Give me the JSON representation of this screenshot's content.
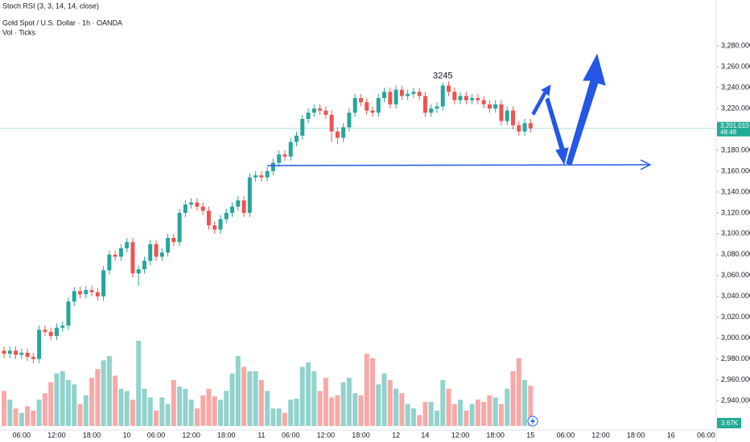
{
  "chart_data": {
    "type": "candlestick",
    "indicator": "Stoch RSI (3, 3, 14, 14, close)",
    "title": "Gold Spot / U.S. Dollar · 1h · OANDA",
    "volume_title": "Vol · Ticks",
    "peak_label": "3245",
    "last_price_label": "3,201.010",
    "countdown": "48:48",
    "volume_label": "3.67K",
    "up_color": "#26a69a",
    "down_color": "#ef5350",
    "ylim": [
      2912,
      3324
    ],
    "volume_ylim": [
      0,
      10000
    ],
    "yticks": [
      {
        "value": 2940,
        "label": "2,940.000"
      },
      {
        "value": 2960,
        "label": "2,960.000"
      },
      {
        "value": 2980,
        "label": "2,980.000"
      },
      {
        "value": 3000,
        "label": "3,000.000"
      },
      {
        "value": 3020,
        "label": "3,020.000"
      },
      {
        "value": 3040,
        "label": "3,040.000"
      },
      {
        "value": 3060,
        "label": "3,060.000"
      },
      {
        "value": 3080,
        "label": "3,080.000"
      },
      {
        "value": 3100,
        "label": "3,100.000"
      },
      {
        "value": 3120,
        "label": "3,120.000"
      },
      {
        "value": 3140,
        "label": "3,140.000"
      },
      {
        "value": 3160,
        "label": "3,160.000"
      },
      {
        "value": 3180,
        "label": "3,180.000"
      },
      {
        "value": 3220,
        "label": "3,220.000"
      },
      {
        "value": 3240,
        "label": "3,240.000"
      },
      {
        "value": 3260,
        "label": "3,260.000"
      },
      {
        "value": 3280,
        "label": "3,280.000"
      }
    ],
    "categories": [
      null,
      null,
      null,
      "06:00",
      null,
      null,
      null,
      null,
      null,
      "12:00",
      null,
      null,
      null,
      null,
      null,
      "18:00",
      null,
      null,
      null,
      null,
      null,
      "10",
      null,
      null,
      null,
      null,
      "06:00",
      null,
      null,
      null,
      null,
      null,
      "12:00",
      null,
      null,
      null,
      null,
      null,
      "18:00",
      null,
      null,
      null,
      null,
      null,
      "11",
      null,
      null,
      null,
      null,
      "06:00",
      null,
      null,
      null,
      null,
      null,
      "12:00",
      null,
      null,
      null,
      null,
      null,
      "18:00",
      null,
      null,
      null,
      null,
      null,
      "12",
      null,
      null,
      null,
      null,
      "14",
      null,
      null,
      null,
      null,
      null,
      "12:00",
      null,
      null,
      null,
      null,
      null,
      "18:00",
      null,
      null,
      null,
      null,
      null,
      "15",
      null,
      null,
      null,
      null,
      null,
      "06:00",
      null,
      null,
      null,
      null,
      null,
      "12:00",
      null,
      null,
      null,
      null,
      null,
      "18:00",
      null,
      null,
      null,
      null,
      null,
      "16",
      null,
      null,
      null,
      null,
      null,
      "06:00"
    ],
    "open": [
      2988,
      2985,
      2988,
      2984,
      2986,
      2982,
      2980,
      3008,
      3006,
      3002,
      3010,
      3012,
      3035,
      3045,
      3042,
      3046,
      3044,
      3040,
      3065,
      3080,
      3078,
      3086,
      3092,
      3062,
      3066,
      3074,
      3090,
      3078,
      3082,
      3096,
      3092,
      3120,
      3128,
      3130,
      3126,
      3122,
      3108,
      3104,
      3114,
      3120,
      3126,
      3132,
      3120,
      3154,
      3156,
      3154,
      3160,
      3168,
      3176,
      3174,
      3188,
      3194,
      3210,
      3216,
      3220,
      3218,
      3214,
      3198,
      3192,
      3202,
      3216,
      3230,
      3226,
      3218,
      3216,
      3230,
      3236,
      3224,
      3238,
      3232,
      3234,
      3236,
      3232,
      3216,
      3220,
      3222,
      3242,
      3236,
      3228,
      3232,
      3228,
      3230,
      3228,
      3224,
      3220,
      3224,
      3208,
      3218,
      3204,
      3198,
      3206,
      null,
      null,
      null,
      null,
      null,
      null,
      null,
      null,
      null,
      null,
      null,
      null,
      null,
      null,
      null,
      null,
      null,
      null,
      null,
      null,
      null,
      null,
      null,
      null,
      null,
      null,
      null,
      null,
      null,
      null
    ],
    "high": [
      2992,
      2992,
      2992,
      2990,
      2990,
      2986,
      3012,
      3012,
      3010,
      3014,
      3016,
      3039,
      3049,
      3049,
      3050,
      3050,
      3048,
      3069,
      3084,
      3084,
      3090,
      3096,
      3096,
      3070,
      3078,
      3094,
      3094,
      3086,
      3100,
      3100,
      3124,
      3132,
      3134,
      3134,
      3130,
      3126,
      3112,
      3118,
      3124,
      3130,
      3136,
      3136,
      3158,
      3160,
      3160,
      3164,
      3172,
      3180,
      3180,
      3192,
      3198,
      3214,
      3220,
      3224,
      3224,
      3222,
      3218,
      3202,
      3206,
      3220,
      3234,
      3234,
      3230,
      3222,
      3234,
      3240,
      3240,
      3242,
      3242,
      3238,
      3240,
      3240,
      3236,
      3224,
      3226,
      3245,
      3246,
      3240,
      3236,
      3236,
      3234,
      3234,
      3232,
      3228,
      3228,
      3228,
      3222,
      3222,
      3208,
      3210,
      3210,
      null,
      null,
      null,
      null,
      null,
      null,
      null,
      null,
      null,
      null,
      null,
      null,
      null,
      null,
      null,
      null,
      null,
      null,
      null,
      null,
      null,
      null,
      null,
      null,
      null,
      null,
      null,
      null,
      null,
      null
    ],
    "low": [
      2981,
      2981,
      2980,
      2980,
      2978,
      2976,
      2976,
      3002,
      2998,
      2998,
      3006,
      3008,
      3031,
      3038,
      3038,
      3040,
      3036,
      3036,
      3061,
      3074,
      3074,
      3082,
      3058,
      3050,
      3062,
      3070,
      3074,
      3074,
      3078,
      3088,
      3088,
      3116,
      3124,
      3122,
      3118,
      3104,
      3100,
      3100,
      3110,
      3116,
      3122,
      3116,
      3116,
      3150,
      3150,
      3150,
      3156,
      3164,
      3170,
      3170,
      3184,
      3190,
      3206,
      3212,
      3214,
      3210,
      3188,
      3186,
      3188,
      3198,
      3212,
      3222,
      3214,
      3212,
      3212,
      3226,
      3220,
      3220,
      3228,
      3228,
      3230,
      3228,
      3212,
      3212,
      3216,
      3218,
      3232,
      3224,
      3224,
      3224,
      3224,
      3224,
      3220,
      3216,
      3216,
      3204,
      3204,
      3200,
      3194,
      3194,
      3197,
      null,
      null,
      null,
      null,
      null,
      null,
      null,
      null,
      null,
      null,
      null,
      null,
      null,
      null,
      null,
      null,
      null,
      null,
      null,
      null,
      null,
      null,
      null,
      null,
      null,
      null,
      null,
      null,
      null,
      null
    ],
    "close": [
      2985,
      2988,
      2984,
      2986,
      2982,
      2980,
      3008,
      3006,
      3002,
      3010,
      3012,
      3035,
      3045,
      3042,
      3046,
      3044,
      3040,
      3065,
      3080,
      3078,
      3086,
      3092,
      3062,
      3066,
      3074,
      3090,
      3078,
      3082,
      3096,
      3092,
      3120,
      3128,
      3130,
      3126,
      3122,
      3108,
      3104,
      3114,
      3120,
      3126,
      3132,
      3120,
      3154,
      3156,
      3154,
      3160,
      3168,
      3176,
      3174,
      3188,
      3194,
      3210,
      3216,
      3220,
      3218,
      3214,
      3198,
      3192,
      3202,
      3216,
      3230,
      3226,
      3218,
      3216,
      3230,
      3236,
      3224,
      3238,
      3232,
      3234,
      3236,
      3232,
      3216,
      3220,
      3222,
      3242,
      3236,
      3228,
      3232,
      3228,
      3230,
      3228,
      3224,
      3220,
      3224,
      3208,
      3218,
      3204,
      3198,
      3206,
      3201.01,
      null,
      null,
      null,
      null,
      null,
      null,
      null,
      null,
      null,
      null,
      null,
      null,
      null,
      null,
      null,
      null,
      null,
      null,
      null,
      null,
      null,
      null,
      null,
      null,
      null,
      null,
      null,
      null,
      null,
      null
    ],
    "volume": [
      3200,
      2400,
      1600,
      1200,
      1800,
      1400,
      2400,
      3000,
      4000,
      4800,
      5000,
      4200,
      3800,
      2000,
      2800,
      4400,
      5200,
      6000,
      6400,
      4600,
      3400,
      3200,
      2400,
      7800,
      3400,
      2600,
      1400,
      2600,
      2000,
      4200,
      3600,
      3400,
      2400,
      1600,
      2800,
      3400,
      2700,
      2400,
      3200,
      4800,
      6400,
      5400,
      5000,
      5000,
      4200,
      3200,
      1600,
      1600,
      1200,
      2400,
      2500,
      5400,
      5800,
      5000,
      3200,
      4400,
      2600,
      2800,
      4000,
      4400,
      3000,
      2800,
      6600,
      6200,
      3800,
      4800,
      4200,
      3400,
      3000,
      2000,
      1600,
      1000,
      2200,
      2200,
      1400,
      4200,
      3400,
      2000,
      2400,
      1400,
      2000,
      2400,
      2200,
      2800,
      2600,
      2000,
      3400,
      5000,
      6200,
      4200,
      3670,
      null,
      null,
      null,
      null,
      null,
      null,
      null,
      null,
      null,
      null,
      null,
      null,
      null,
      null,
      null,
      null,
      null,
      null,
      null,
      null,
      null,
      null,
      null,
      null,
      null,
      null,
      null,
      null,
      null,
      null
    ]
  }
}
